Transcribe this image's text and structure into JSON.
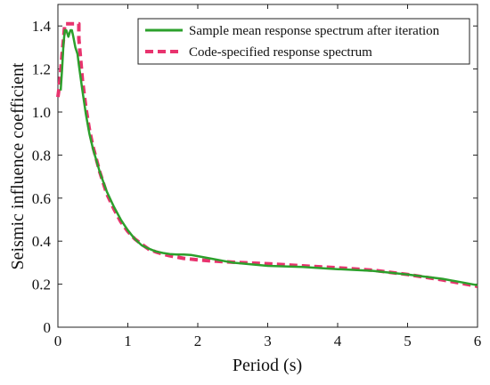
{
  "chart_data": {
    "type": "line",
    "xlabel": "Period (s)",
    "ylabel": "Seismic influence coefficient",
    "xlim": [
      0,
      6
    ],
    "ylim": [
      0,
      1.5
    ],
    "x_ticks": [
      0,
      1,
      2,
      3,
      4,
      5,
      6
    ],
    "x_tick_labels": [
      "0",
      "1",
      "2",
      "3",
      "4",
      "5",
      "6"
    ],
    "y_ticks": [
      0,
      0.2,
      0.4,
      0.6,
      0.8,
      1.0,
      1.2,
      1.4
    ],
    "y_tick_labels": [
      "0",
      "0.2",
      "0.4",
      "0.6",
      "0.8",
      "1.0",
      "1.2",
      "1.4"
    ],
    "grid": false,
    "legend_position": "top-right",
    "series": [
      {
        "name": "Sample mean response spectrum after iteration",
        "color": "#2ca02c",
        "style": "solid",
        "x": [
          0.04,
          0.06,
          0.08,
          0.1,
          0.12,
          0.15,
          0.18,
          0.2,
          0.22,
          0.25,
          0.28,
          0.3,
          0.35,
          0.4,
          0.45,
          0.5,
          0.6,
          0.7,
          0.8,
          0.9,
          1.0,
          1.1,
          1.2,
          1.3,
          1.4,
          1.5,
          1.6,
          1.7,
          1.8,
          1.9,
          2.0,
          2.2,
          2.5,
          3.0,
          3.5,
          4.0,
          4.5,
          5.0,
          5.5,
          6.0
        ],
        "y": [
          1.1,
          1.2,
          1.32,
          1.38,
          1.38,
          1.35,
          1.38,
          1.38,
          1.35,
          1.3,
          1.27,
          1.22,
          1.1,
          0.99,
          0.9,
          0.83,
          0.72,
          0.63,
          0.56,
          0.5,
          0.45,
          0.41,
          0.38,
          0.365,
          0.352,
          0.345,
          0.34,
          0.338,
          0.338,
          0.336,
          0.33,
          0.318,
          0.3,
          0.285,
          0.28,
          0.27,
          0.262,
          0.245,
          0.225,
          0.195
        ]
      },
      {
        "name": "Code-specified response spectrum",
        "color": "#e8336e",
        "style": "dashed",
        "x": [
          0.0,
          0.02,
          0.04,
          0.06,
          0.08,
          0.1,
          0.3,
          0.3,
          0.35,
          0.4,
          0.45,
          0.5,
          0.6,
          0.7,
          0.8,
          0.9,
          1.0,
          1.1,
          1.2,
          1.3,
          1.4,
          1.5,
          1.6,
          1.8,
          2.0,
          2.2,
          2.5,
          3.0,
          3.5,
          4.0,
          4.5,
          5.0,
          5.5,
          6.0
        ],
        "y": [
          1.07,
          1.12,
          1.19,
          1.27,
          1.34,
          1.41,
          1.41,
          1.34,
          1.15,
          1.02,
          0.92,
          0.84,
          0.72,
          0.62,
          0.55,
          0.49,
          0.445,
          0.41,
          0.385,
          0.362,
          0.35,
          0.34,
          0.332,
          0.32,
          0.313,
          0.308,
          0.302,
          0.295,
          0.285,
          0.276,
          0.265,
          0.245,
          0.22,
          0.19
        ]
      }
    ]
  }
}
